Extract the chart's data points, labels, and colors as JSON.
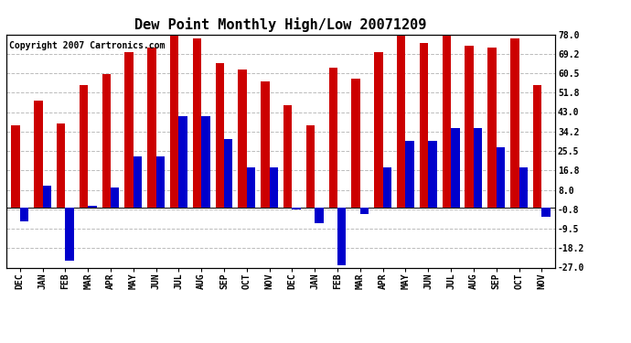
{
  "title": "Dew Point Monthly High/Low 20071209",
  "copyright": "Copyright 2007 Cartronics.com",
  "categories": [
    "DEC",
    "JAN",
    "FEB",
    "MAR",
    "APR",
    "MAY",
    "JUN",
    "JUL",
    "AUG",
    "SEP",
    "OCT",
    "NOV",
    "DEC",
    "JAN",
    "FEB",
    "MAR",
    "APR",
    "MAY",
    "JUN",
    "JUL",
    "AUG",
    "SEP",
    "OCT",
    "NOV"
  ],
  "highs": [
    37,
    48,
    38,
    55,
    60,
    70,
    72,
    78,
    76,
    65,
    62,
    57,
    46,
    37,
    63,
    58,
    70,
    78,
    74,
    78,
    73,
    72,
    76,
    55
  ],
  "lows": [
    -6,
    10,
    -24,
    1,
    9,
    23,
    23,
    41,
    41,
    31,
    18,
    18,
    -1,
    -7,
    -26,
    -3,
    18,
    30,
    30,
    36,
    36,
    27,
    18,
    -4
  ],
  "bar_color_high": "#cc0000",
  "bar_color_low": "#0000cc",
  "ylim_min": -27,
  "ylim_max": 78,
  "yticks": [
    -27.0,
    -18.2,
    -9.5,
    -0.8,
    8.0,
    16.8,
    25.5,
    34.2,
    43.0,
    51.8,
    60.5,
    69.2,
    78.0
  ],
  "background_color": "#ffffff",
  "grid_color": "#bbbbbb",
  "title_fontsize": 11,
  "copyright_fontsize": 7,
  "bar_width": 0.38
}
